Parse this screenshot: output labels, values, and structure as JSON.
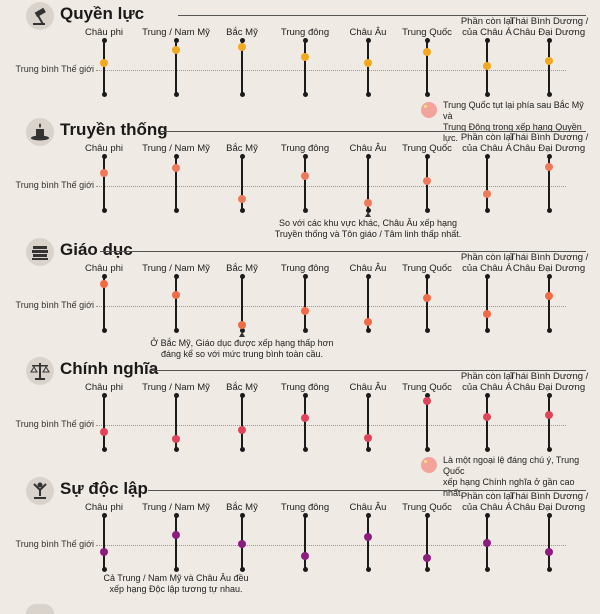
{
  "regions": [
    "Châu phi",
    "Trung / Nam Mỹ",
    "Bắc Mỹ",
    "Trung đông",
    "Châu Âu",
    "Trung Quốc",
    "Phần còn lại\ncủa Châu Á",
    "Thái Bình Dương /\nChâu Đại Dương"
  ],
  "avg_label": "Trung bình Thế giới",
  "sections": [
    {
      "title": "Quyền lực",
      "icon": "gavel-icon",
      "color": "#f2a81f",
      "values": [
        0.3,
        0.85,
        0.95,
        0.55,
        0.3,
        0.75,
        0.18,
        0.38
      ],
      "note": {
        "text": "Trung Quốc tụt lại phía sau Bắc Mỹ và\nTrung Đông trong xếp hạng Quyền lực.",
        "region": 5,
        "kind": "flag"
      }
    },
    {
      "title": "Truyền thống",
      "icon": "candle-icon",
      "color": "#ee7a5c",
      "values": [
        0.55,
        0.75,
        -0.55,
        0.4,
        -0.7,
        0.2,
        -0.35,
        0.8
      ],
      "note": {
        "text": "So với các khu vực khác, Châu Âu xếp hạng\nTruyền thống và Tôn giáo / Tâm linh thấp nhất.",
        "region": 4,
        "kind": "arrow"
      }
    },
    {
      "title": "Giáo dục",
      "icon": "books-icon",
      "color": "#f06c46",
      "values": [
        0.9,
        0.45,
        -0.8,
        -0.2,
        -0.65,
        0.35,
        -0.35,
        0.4
      ],
      "note": {
        "text": "Ở Bắc Mỹ, Giáo dục được xếp hạng thấp hơn\nđáng kể so với mức trung bình toàn cầu.",
        "region": 2,
        "kind": "arrow"
      }
    },
    {
      "title": "Chính nghĩa",
      "icon": "scales-icon",
      "color": "#e0445a",
      "values": [
        -0.3,
        -0.6,
        -0.2,
        0.3,
        -0.55,
        1.0,
        0.35,
        0.4
      ],
      "note": {
        "text": "Là một ngoại lệ đáng chú ý, Trung Quốc\nxếp hạng Chính nghĩa ở gần cao nhất.",
        "region": 5,
        "kind": "flag"
      }
    },
    {
      "title": "Sự độc lập",
      "icon": "freedom-icon",
      "color": "#8c1d7f",
      "values": [
        -0.3,
        0.4,
        0.05,
        -0.45,
        0.35,
        -0.55,
        0.1,
        -0.3
      ],
      "note": {
        "text": "Cả Trung / Nam Mỹ và Châu Âu đều\nxếp hạng Độc lập tương tự nhau.",
        "region": 1,
        "kind": "plain"
      }
    }
  ]
}
